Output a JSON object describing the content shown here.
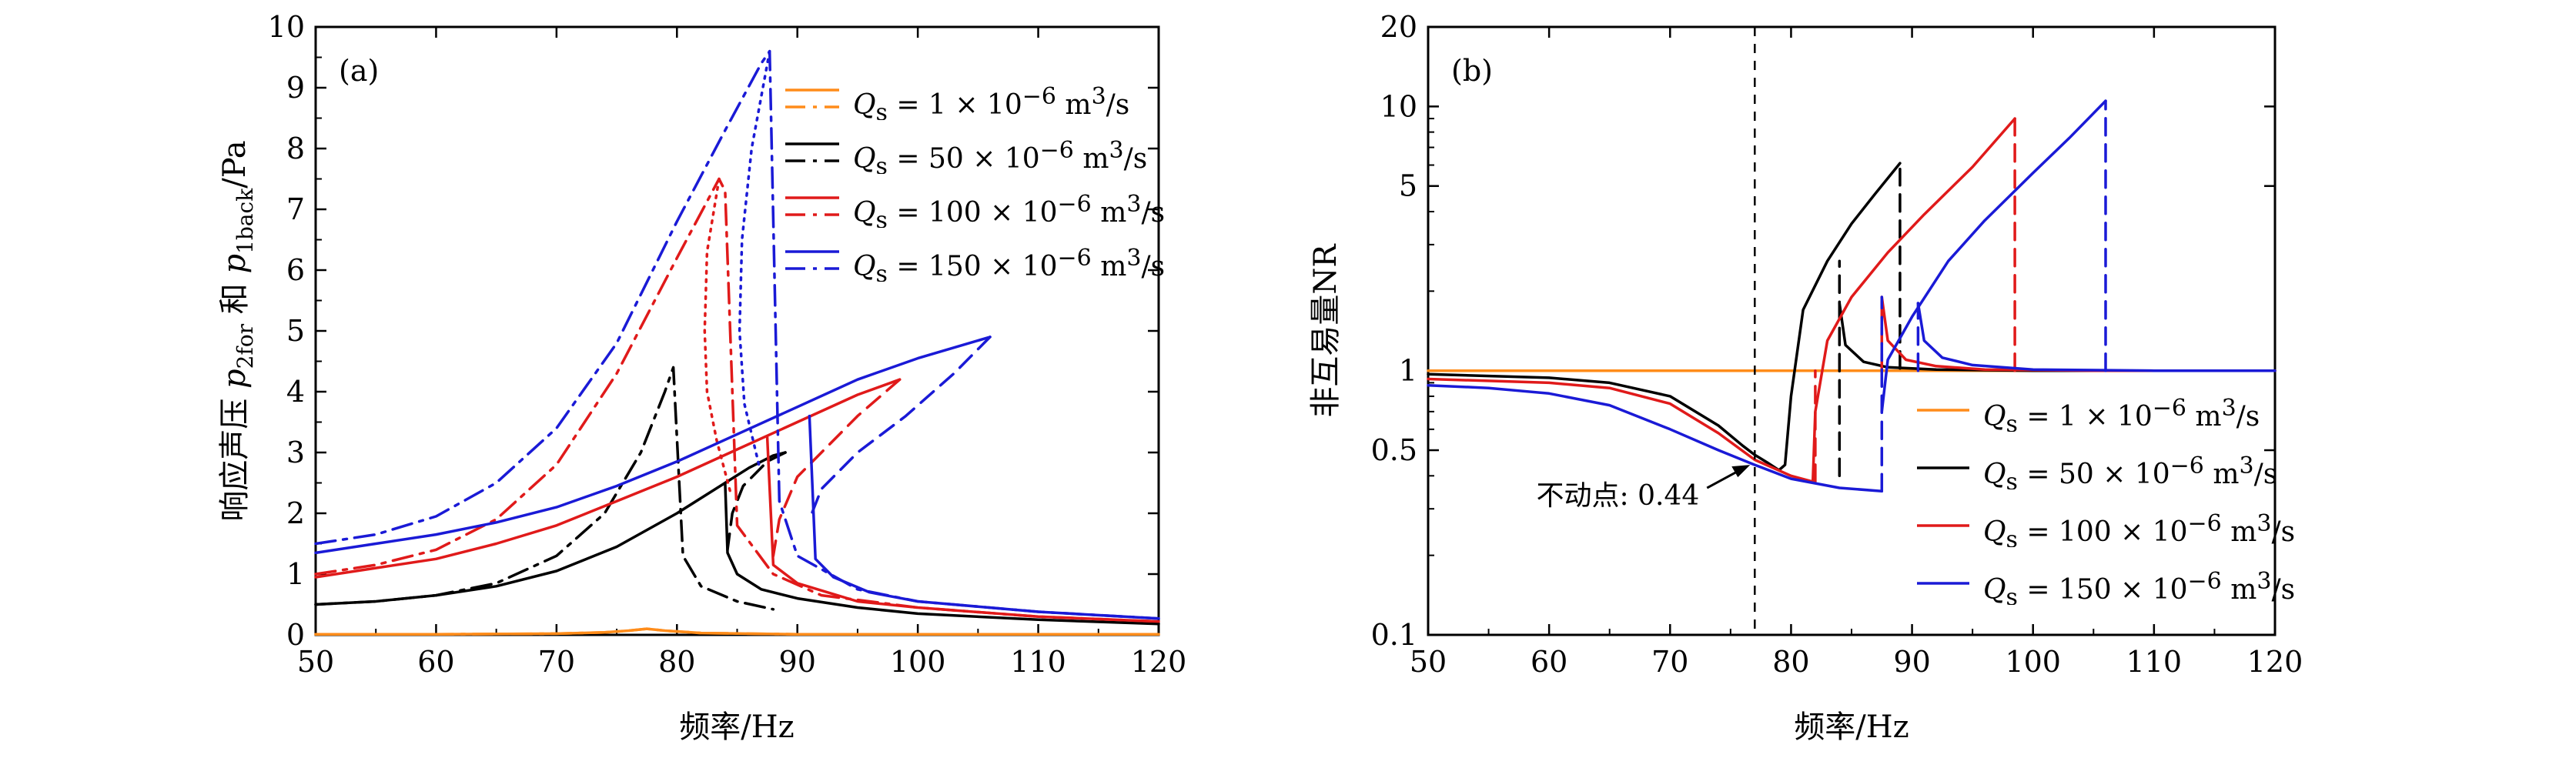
{
  "colors": {
    "orange": "#ff8c1a",
    "black": "#000000",
    "red": "#e01a1a",
    "blue": "#1a1ad6"
  },
  "legend_labels": {
    "q1": "Q<sub>s</sub> = 1 × 10<sup>−6</sup> m<sup>3</sup>/s",
    "q50": "Q<sub>s</sub> = 50 × 10<sup>−6</sup> m<sup>3</sup>/s",
    "q100": "Q<sub>s</sub> = 100 × 10<sup>−6</sup> m<sup>3</sup>/s",
    "q150": "Q<sub>s</sub> = 150 × 10<sup>−6</sup> m<sup>3</sup>/s"
  },
  "chart_data": [
    {
      "type": "line",
      "panel": "(a)",
      "xlabel": "频率/Hz",
      "ylabel": "响应声压 p2for 和 p1back/Pa",
      "xlim": [
        50,
        120
      ],
      "ylim": [
        0,
        10
      ],
      "xticks": [
        50,
        60,
        70,
        80,
        90,
        100,
        110,
        120
      ],
      "yticks": [
        0,
        1,
        2,
        3,
        4,
        5,
        6,
        7,
        8,
        9,
        10
      ],
      "grid": false,
      "legend_position": "top-right",
      "legend": [
        "Qs = 1×10^-6 m^3/s",
        "Qs = 50×10^-6 m^3/s",
        "Qs = 100×10^-6 m^3/s",
        "Qs = 150×10^-6 m^3/s"
      ],
      "series": [
        {
          "name": "Qs = 1×10^-6 m^3/s",
          "color_key": "orange",
          "style": "solid",
          "x": [
            50,
            60,
            70,
            74,
            76,
            77.5,
            79,
            82,
            90,
            120
          ],
          "y": [
            0.01,
            0.01,
            0.02,
            0.04,
            0.07,
            0.1,
            0.07,
            0.03,
            0.01,
            0.01
          ]
        },
        {
          "name": "Qs = 1×10^-6 m^3/s",
          "color_key": "orange",
          "style": "dashdot",
          "x": [
            50,
            60,
            70,
            74,
            76,
            77.5,
            79,
            82,
            90,
            120
          ],
          "y": [
            0.01,
            0.01,
            0.02,
            0.04,
            0.07,
            0.1,
            0.07,
            0.03,
            0.01,
            0.01
          ]
        },
        {
          "name": "Qs = 50×10^-6 m^3/s",
          "color_key": "black",
          "style": "solid",
          "x": [
            50,
            55,
            60,
            65,
            70,
            75,
            80,
            84,
            86,
            88,
            89
          ],
          "y": [
            0.5,
            0.55,
            0.65,
            0.8,
            1.05,
            1.45,
            2.0,
            2.5,
            2.75,
            2.95,
            3.0
          ]
        },
        {
          "name": "Qs = 50×10^-6 m^3/s",
          "color_key": "black",
          "style": "solid",
          "x": [
            84,
            84.2,
            85,
            87,
            90,
            95,
            100,
            110,
            120
          ],
          "y": [
            2.5,
            1.35,
            1.0,
            0.75,
            0.6,
            0.45,
            0.35,
            0.25,
            0.18
          ]
        },
        {
          "name": "Qs = 50×10^-6 m^3/s",
          "color_key": "black",
          "style": "dashed",
          "x": [
            89,
            87.5,
            85.5,
            84.6,
            84.2
          ],
          "y": [
            3.0,
            2.85,
            2.45,
            2.0,
            1.4
          ]
        },
        {
          "name": "Qs = 50×10^-6 m^3/s",
          "color_key": "black",
          "style": "dashdot",
          "x": [
            50,
            55,
            60,
            65,
            70,
            74,
            77,
            79,
            79.7,
            80.5,
            82,
            85,
            88
          ],
          "y": [
            0.5,
            0.55,
            0.65,
            0.85,
            1.3,
            2.0,
            3.0,
            4.0,
            4.4,
            1.3,
            0.8,
            0.55,
            0.42
          ]
        },
        {
          "name": "Qs = 100×10^-6 m^3/s",
          "color_key": "red",
          "style": "solid",
          "x": [
            50,
            55,
            60,
            65,
            70,
            75,
            80,
            85,
            90,
            95,
            98.5
          ],
          "y": [
            0.95,
            1.1,
            1.25,
            1.5,
            1.8,
            2.2,
            2.6,
            3.05,
            3.5,
            3.95,
            4.2
          ]
        },
        {
          "name": "Qs = 100×10^-6 m^3/s",
          "color_key": "red",
          "style": "solid",
          "x": [
            87.5,
            88,
            90,
            95,
            100,
            110,
            120
          ],
          "y": [
            3.25,
            1.15,
            0.85,
            0.55,
            0.45,
            0.3,
            0.22
          ]
        },
        {
          "name": "Qs = 100×10^-6 m^3/s",
          "color_key": "red",
          "style": "dashed",
          "x": [
            98.5,
            95,
            92,
            90,
            88.5,
            88
          ],
          "y": [
            4.2,
            3.6,
            3.0,
            2.6,
            1.9,
            1.3
          ]
        },
        {
          "name": "Qs = 100×10^-6 m^3/s",
          "color_key": "red",
          "style": "dashdot",
          "x": [
            50,
            55,
            60,
            65,
            70,
            75,
            80,
            83.5,
            84,
            85,
            88,
            92,
            100,
            110,
            120
          ],
          "y": [
            1.0,
            1.15,
            1.4,
            1.9,
            2.8,
            4.3,
            6.2,
            7.5,
            7.3,
            1.8,
            1.0,
            0.65,
            0.45,
            0.3,
            0.22
          ]
        },
        {
          "name": "Qs = 100×10^-6 m^3/s",
          "color_key": "red",
          "style": "dotted",
          "x": [
            83.5,
            82.5,
            82.3,
            82.5,
            83.3,
            84.5
          ],
          "y": [
            7.5,
            6.3,
            5.0,
            4.0,
            3.2,
            2.3
          ]
        },
        {
          "name": "Qs = 150×10^-6 m^3/s",
          "color_key": "blue",
          "style": "solid",
          "x": [
            50,
            55,
            60,
            65,
            70,
            75,
            80,
            85,
            90,
            95,
            100,
            106
          ],
          "y": [
            1.35,
            1.5,
            1.65,
            1.85,
            2.1,
            2.45,
            2.85,
            3.3,
            3.75,
            4.2,
            4.55,
            4.9
          ]
        },
        {
          "name": "Qs = 150×10^-6 m^3/s",
          "color_key": "blue",
          "style": "solid",
          "x": [
            91,
            91.5,
            93,
            96,
            100,
            110,
            120
          ],
          "y": [
            3.6,
            1.25,
            0.95,
            0.7,
            0.55,
            0.38,
            0.27
          ]
        },
        {
          "name": "Qs = 150×10^-6 m^3/s",
          "color_key": "blue",
          "style": "dashed",
          "x": [
            106,
            103,
            99,
            95,
            92,
            91
          ],
          "y": [
            4.9,
            4.3,
            3.6,
            3.0,
            2.4,
            1.9
          ]
        },
        {
          "name": "Qs = 150×10^-6 m^3/s",
          "color_key": "blue",
          "style": "dashdot",
          "x": [
            50,
            55,
            60,
            65,
            70,
            75,
            80,
            84,
            87,
            87.7,
            88.5,
            90,
            95,
            100,
            110,
            120
          ],
          "y": [
            1.5,
            1.65,
            1.95,
            2.5,
            3.4,
            4.8,
            6.8,
            8.3,
            9.4,
            9.6,
            2.2,
            1.3,
            0.75,
            0.55,
            0.38,
            0.27
          ]
        },
        {
          "name": "Qs = 150×10^-6 m^3/s",
          "color_key": "blue",
          "style": "dotted",
          "x": [
            87.7,
            86.2,
            85.4,
            85.2,
            85.6,
            86.8
          ],
          "y": [
            9.6,
            8.0,
            6.5,
            5.0,
            3.8,
            2.8
          ]
        }
      ]
    },
    {
      "type": "line",
      "panel": "(b)",
      "xlabel": "频率/Hz",
      "ylabel": "非互易量NR",
      "xlim": [
        50,
        120
      ],
      "ylim": [
        0.1,
        20
      ],
      "yscale": "log",
      "xticks": [
        50,
        60,
        70,
        80,
        90,
        100,
        110,
        120
      ],
      "yticks": [
        0.1,
        0.5,
        1,
        5,
        10,
        20
      ],
      "ytick_labels": [
        "0.1",
        "0.5",
        "1",
        "5",
        "10",
        "20"
      ],
      "grid": false,
      "legend_position": "bottom-right",
      "legend": [
        "Qs = 1×10^-6 m^3/s",
        "Qs = 50×10^-6 m^3/s",
        "Qs = 100×10^-6 m^3/s",
        "Qs = 150×10^-6 m^3/s"
      ],
      "annotation": {
        "text": "不动点: 0.44",
        "x": 77,
        "y": 0.44
      },
      "fixed_point_line_x": 77,
      "series": [
        {
          "name": "Qs = 1×10^-6 m^3/s",
          "color_key": "orange",
          "style": "solid",
          "x": [
            50,
            120
          ],
          "y": [
            1.0,
            1.0
          ]
        },
        {
          "name": "Qs = 50×10^-6 m^3/s",
          "color_key": "black",
          "style": "solid",
          "x": [
            50,
            60,
            65,
            70,
            74,
            76,
            77,
            78,
            79,
            79.5,
            80,
            81,
            83,
            85,
            87,
            89
          ],
          "y": [
            0.97,
            0.94,
            0.9,
            0.8,
            0.62,
            0.52,
            0.48,
            0.45,
            0.42,
            0.44,
            0.8,
            1.7,
            2.6,
            3.6,
            4.7,
            6.1
          ]
        },
        {
          "name": "Qs = 50×10^-6 m^3/s",
          "color_key": "black",
          "style": "solid",
          "x": [
            84,
            84.5,
            86,
            88,
            92,
            100,
            120
          ],
          "y": [
            1.8,
            1.25,
            1.08,
            1.03,
            1.01,
            1.0,
            1.0
          ]
        },
        {
          "name": "Qs = 50×10^-6 m^3/s",
          "color_key": "black",
          "style": "dashed",
          "x": [
            84,
            84
          ],
          "y": [
            0.4,
            2.6
          ]
        },
        {
          "name": "Qs = 50×10^-6 m^3/s",
          "color_key": "black",
          "style": "dashed",
          "x": [
            89,
            89
          ],
          "y": [
            1.02,
            5.8
          ]
        },
        {
          "name": "Qs = 100×10^-6 m^3/s",
          "color_key": "red",
          "style": "solid",
          "x": [
            50,
            60,
            65,
            70,
            74,
            77,
            80,
            81.8,
            82,
            83,
            85,
            88,
            91,
            95,
            98.5
          ],
          "y": [
            0.93,
            0.9,
            0.86,
            0.75,
            0.58,
            0.46,
            0.4,
            0.38,
            0.7,
            1.3,
            1.9,
            2.8,
            3.9,
            5.9,
            9.0
          ]
        },
        {
          "name": "Qs = 100×10^-6 m^3/s",
          "color_key": "red",
          "style": "solid",
          "x": [
            87.5,
            88,
            89.5,
            92,
            96,
            105,
            120
          ],
          "y": [
            1.9,
            1.3,
            1.1,
            1.04,
            1.01,
            1.0,
            1.0
          ]
        },
        {
          "name": "Qs = 100×10^-6 m^3/s",
          "color_key": "red",
          "style": "dashed",
          "x": [
            82,
            82
          ],
          "y": [
            0.38,
            1.0
          ]
        },
        {
          "name": "Qs = 100×10^-6 m^3/s",
          "color_key": "red",
          "style": "dashed",
          "x": [
            87.5,
            87.5
          ],
          "y": [
            1.0,
            1.9
          ]
        },
        {
          "name": "Qs = 100×10^-6 m^3/s",
          "color_key": "red",
          "style": "dashed",
          "x": [
            98.5,
            98.5
          ],
          "y": [
            1.0,
            9.0
          ]
        },
        {
          "name": "Qs = 150×10^-6 m^3/s",
          "color_key": "blue",
          "style": "solid",
          "x": [
            50,
            55,
            60,
            65,
            70,
            74,
            77,
            80,
            84,
            87.5
          ],
          "y": [
            0.88,
            0.86,
            0.82,
            0.74,
            0.6,
            0.5,
            0.44,
            0.39,
            0.36,
            0.35
          ]
        },
        {
          "name": "Qs = 150×10^-6 m^3/s",
          "color_key": "blue",
          "style": "solid",
          "x": [
            87.5,
            88,
            90,
            93,
            96,
            100,
            103,
            106
          ],
          "y": [
            0.7,
            1.1,
            1.6,
            2.6,
            3.7,
            5.6,
            7.6,
            10.5
          ]
        },
        {
          "name": "Qs = 150×10^-6 m^3/s",
          "color_key": "blue",
          "style": "solid",
          "x": [
            90.5,
            91,
            92.5,
            95,
            100,
            110,
            120
          ],
          "y": [
            1.8,
            1.3,
            1.12,
            1.05,
            1.01,
            1.0,
            1.0
          ]
        },
        {
          "name": "Qs = 150×10^-6 m^3/s",
          "color_key": "blue",
          "style": "dashed",
          "x": [
            87.5,
            87.5
          ],
          "y": [
            0.35,
            1.9
          ]
        },
        {
          "name": "Qs = 150×10^-6 m^3/s",
          "color_key": "blue",
          "style": "dashed",
          "x": [
            90.5,
            90.5
          ],
          "y": [
            1.0,
            1.8
          ]
        },
        {
          "name": "Qs = 150×10^-6 m^3/s",
          "color_key": "blue",
          "style": "dashed",
          "x": [
            106,
            106
          ],
          "y": [
            1.0,
            10.5
          ]
        }
      ]
    }
  ]
}
